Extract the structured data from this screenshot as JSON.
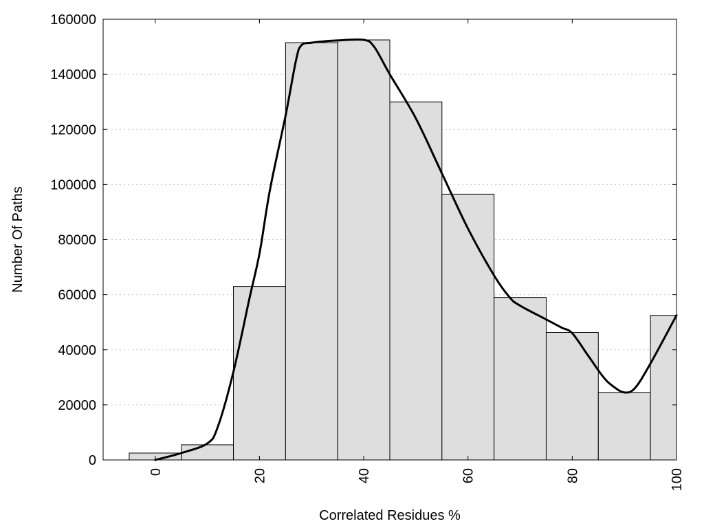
{
  "chart_data": {
    "type": "bar",
    "title": "",
    "xlabel": "Correlated Residues %",
    "ylabel": "Number Of Paths",
    "xlim": [
      -10,
      100
    ],
    "ylim": [
      0,
      160000
    ],
    "x_ticks": [
      0,
      20,
      40,
      60,
      80,
      100
    ],
    "y_ticks": [
      0,
      20000,
      40000,
      60000,
      80000,
      100000,
      120000,
      140000,
      160000
    ],
    "grid": "horizontal dotted",
    "bar_color": "#dedede",
    "bins": [
      {
        "center": 0,
        "value": 2500
      },
      {
        "center": 10,
        "value": 5500
      },
      {
        "center": 20,
        "value": 63000
      },
      {
        "center": 30,
        "value": 151500
      },
      {
        "center": 40,
        "value": 152500
      },
      {
        "center": 50,
        "value": 130000
      },
      {
        "center": 60,
        "value": 96500
      },
      {
        "center": 70,
        "value": 59000
      },
      {
        "center": 80,
        "value": 46300
      },
      {
        "center": 90,
        "value": 24500
      },
      {
        "center": 100,
        "value": 52500
      }
    ],
    "curve": {
      "x": [
        0,
        5,
        10,
        12,
        15,
        18,
        20,
        22,
        25,
        27,
        28,
        30,
        35,
        40,
        42,
        45,
        50,
        55,
        60,
        65,
        68,
        70,
        75,
        78,
        80,
        83,
        86,
        88,
        90,
        92,
        95,
        100
      ],
      "y": [
        0,
        2500,
        6000,
        12000,
        32000,
        58000,
        75000,
        98000,
        125000,
        145000,
        150500,
        151500,
        152300,
        152500,
        150000,
        140000,
        124000,
        104000,
        84000,
        67000,
        59000,
        56000,
        51000,
        48000,
        46000,
        38000,
        30000,
        26500,
        24500,
        26000,
        35000,
        52500
      ],
      "color": "#000000"
    }
  }
}
